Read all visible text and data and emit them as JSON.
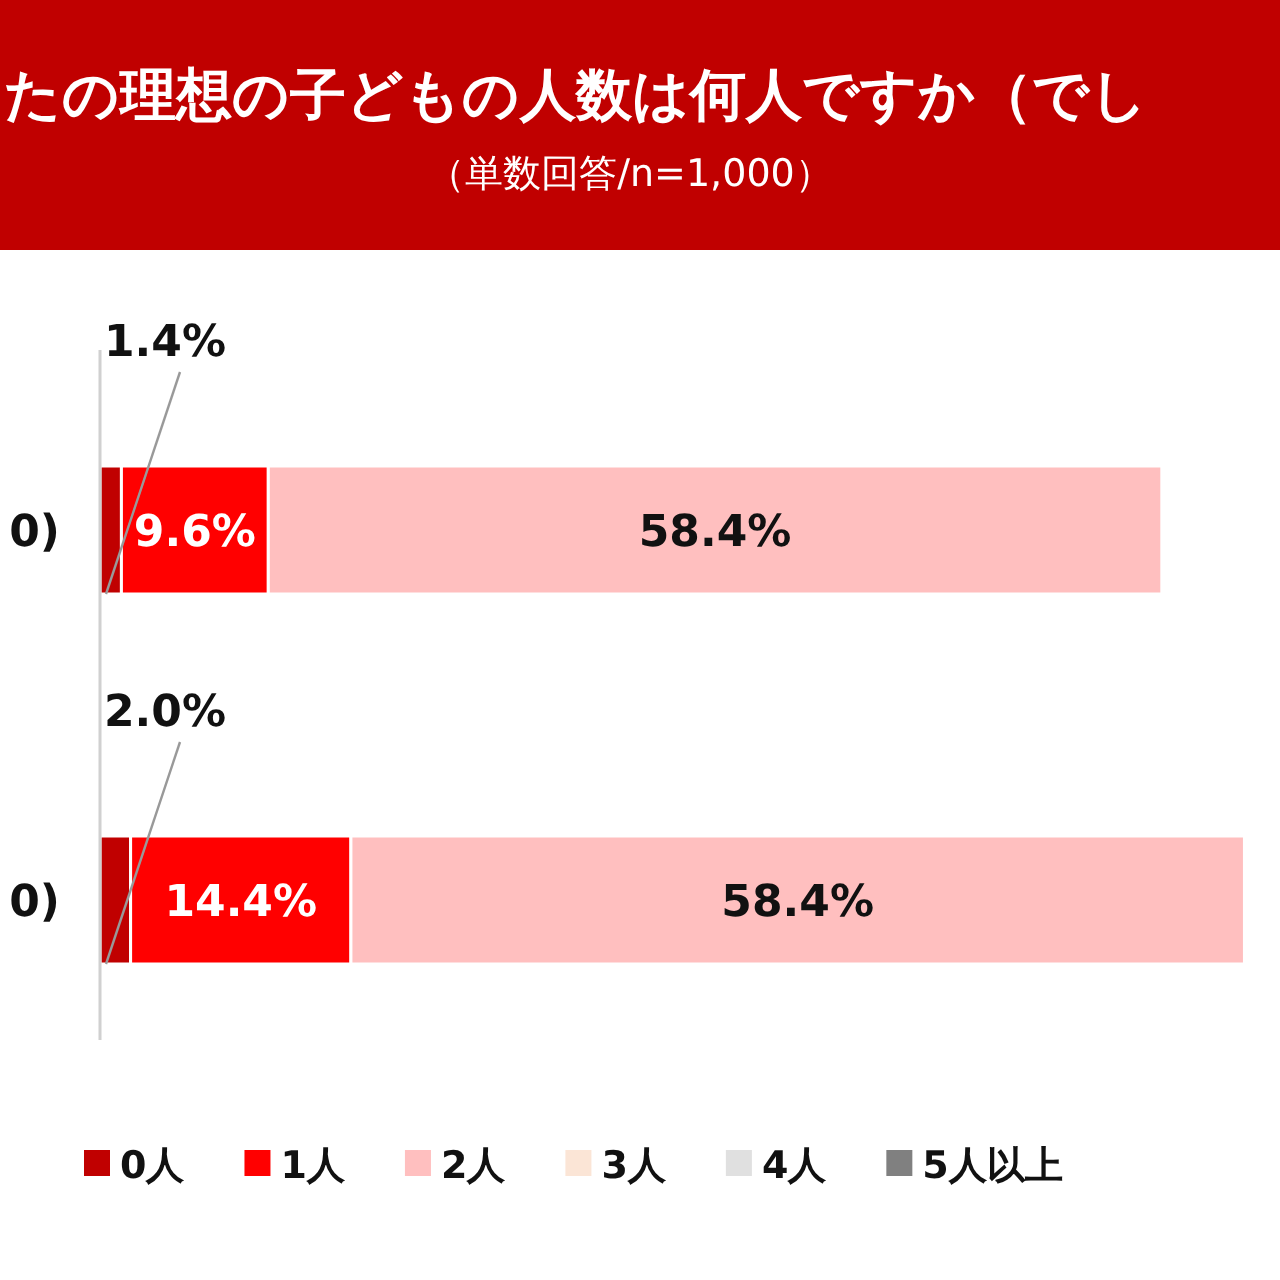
{
  "chart_data": {
    "type": "bar",
    "orientation": "horizontal",
    "stacked": true,
    "title": "たの理想の子どもの人数は何人ですか（でし",
    "subtitle": "（単数回答/n=1,000）",
    "categories": [
      "0)",
      "0)"
    ],
    "tick_labels": "y",
    "legend": "bottom",
    "series": [
      {
        "name": "0人",
        "color": "#c00000",
        "values": [
          1.4,
          2.0
        ],
        "value_labels": [
          "1.4%",
          "2.0%"
        ]
      },
      {
        "name": "1人",
        "color": "#ff0000",
        "values": [
          9.6,
          14.4
        ],
        "value_labels": [
          "9.6%",
          "14.4%"
        ]
      },
      {
        "name": "2人",
        "color": "#ffbfbf",
        "values": [
          58.4,
          58.4
        ],
        "value_labels": [
          "58.4%",
          "58.4%"
        ]
      },
      {
        "name": "3人",
        "color": "#fbe5d6",
        "values": [
          null,
          null
        ]
      },
      {
        "name": "4人",
        "color": "#e0e0e0",
        "values": [
          null,
          null
        ]
      },
      {
        "name": "5人以上",
        "color": "#808080",
        "values": [
          null,
          null
        ]
      }
    ]
  }
}
